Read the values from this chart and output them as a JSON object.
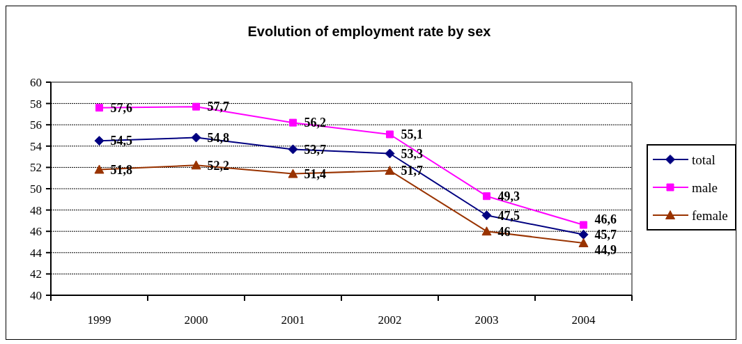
{
  "chart_data": {
    "type": "line",
    "title": "Evolution of employment rate by sex",
    "categories": [
      "1999",
      "2000",
      "2001",
      "2002",
      "2003",
      "2004"
    ],
    "ylim": [
      40,
      60
    ],
    "yticks": [
      40,
      42,
      44,
      46,
      48,
      50,
      52,
      54,
      56,
      58,
      60
    ],
    "grid": "y",
    "legend": "right",
    "series": [
      {
        "name": "total",
        "color": "#000080",
        "marker": "diamond",
        "values": [
          54.5,
          54.8,
          53.7,
          53.3,
          47.5,
          45.7
        ],
        "value_labels": [
          "54,5",
          "54,8",
          "53,7",
          "53,3",
          "47,5",
          "45,7"
        ]
      },
      {
        "name": "male",
        "color": "#ff00ff",
        "marker": "square",
        "values": [
          57.6,
          57.7,
          56.2,
          55.1,
          49.3,
          46.6
        ],
        "value_labels": [
          "57,6",
          "57,7",
          "56,2",
          "55,1",
          "49,3",
          "46,6"
        ]
      },
      {
        "name": "female",
        "color": "#993300",
        "marker": "triangle",
        "values": [
          51.8,
          52.2,
          51.4,
          51.7,
          46,
          44.9
        ],
        "value_labels": [
          "51,8",
          "52,2",
          "51,4",
          "51,7",
          "46",
          "44,9"
        ]
      }
    ]
  }
}
